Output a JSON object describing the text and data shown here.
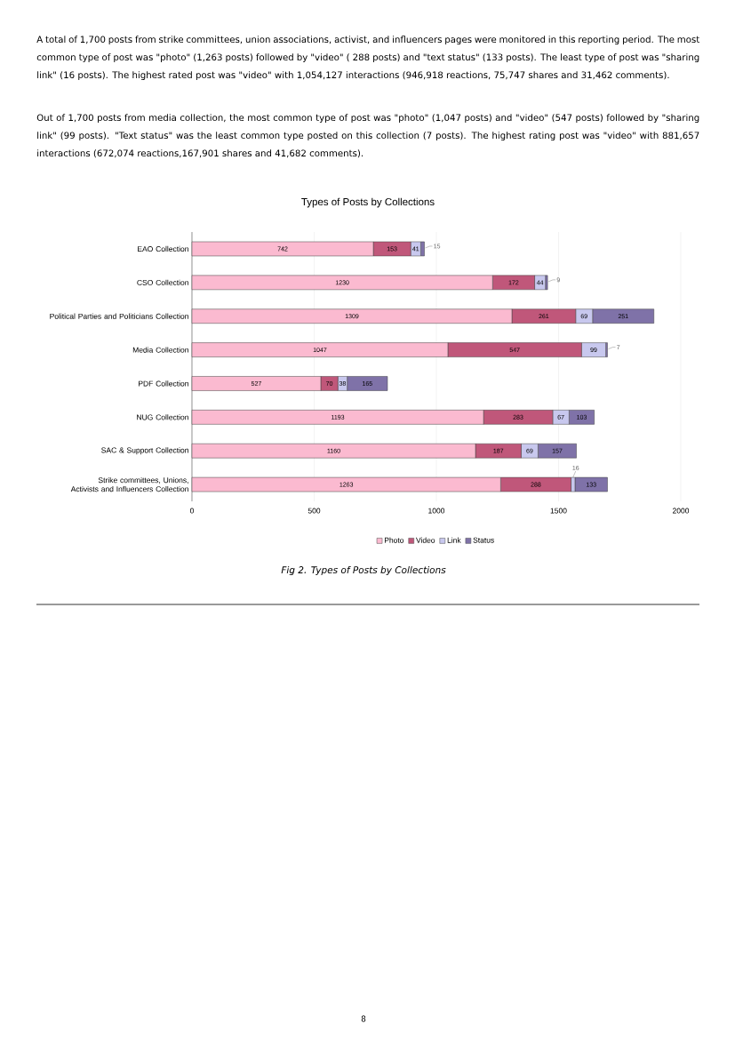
{
  "chart_data": {
    "type": "bar",
    "orientation": "horizontal",
    "stacked": true,
    "title": "Types of Posts by Collections",
    "categories": [
      "EAO Collection",
      "CSO Collection",
      "Political Parties and Politicians Collection",
      "Media Collection",
      "PDF Collection",
      "NUG Collection",
      "SAC & Support Collection",
      "Strike committees, Unions, Activists and Influencers Collection"
    ],
    "series": [
      {
        "name": "Photo",
        "color": "#fbbad0",
        "values": [
          742,
          1230,
          1309,
          1047,
          527,
          1193,
          1160,
          1263
        ]
      },
      {
        "name": "Video",
        "color": "#c0577a",
        "values": [
          153,
          172,
          261,
          547,
          70,
          283,
          187,
          288
        ]
      },
      {
        "name": "Link",
        "color": "#c8c8ee",
        "values": [
          41,
          44,
          69,
          99,
          38,
          67,
          69,
          16
        ]
      },
      {
        "name": "Status",
        "color": "#7f72a8",
        "values": [
          15,
          9,
          251,
          7,
          165,
          103,
          157,
          133
        ]
      }
    ],
    "xlim": [
      0,
      2000
    ],
    "xticks": [
      0,
      500,
      1000,
      1500,
      2000
    ],
    "grid": "x",
    "legend": "bottom",
    "data_labels": true,
    "annotations": [
      "A total of 1,700 posts from strike committees, union associations, activist, and influencers pages were monitored in this reporting period. The most common type of post was \"photo\" (1,263 posts) followed by \"video\" ( 288 posts) and \"text status\" (133 posts). The least type of post was \"sharing link\" (16 posts). The highest rated post was \"video\" with 1,054,127 interactions (946,918 reactions, 75,747 shares and 31,462 comments).",
      "Out of 1,700 posts from media collection, the most common type of post was \"photo\" (1,047 posts) and \"video\" (547 posts) followed by \"sharing link\" (99 posts). \"Text status\" was the least common type posted on this collection (7 posts). The highest rating post was \"video\" with 881,657 interactions (672,074 reactions,167,901 shares and 41,682 comments).",
      "Fig 2. Types of Posts by Collections",
      "8"
    ]
  }
}
